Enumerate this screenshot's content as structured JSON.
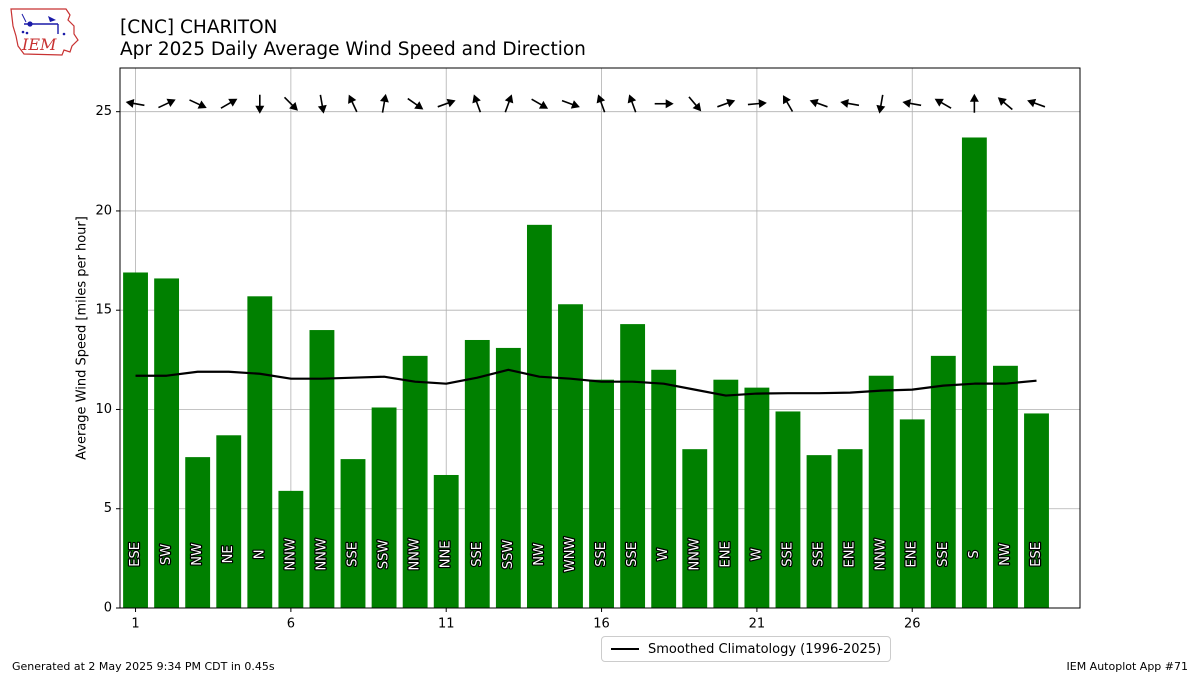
{
  "header": {
    "title_line1": "[CNC] CHARITON",
    "title_line2": "Apr 2025 Daily Average Wind Speed and Direction"
  },
  "logo": {
    "text": "IEM",
    "icon": "iem-iowa-logo"
  },
  "footer": {
    "generated": "Generated at 2 May 2025 9:34 PM CDT in 0.45s",
    "app": "IEM Autoplot App #71"
  },
  "legend": {
    "label": "Smoothed Climatology (1996-2025)"
  },
  "colors": {
    "bars": "#008000",
    "line": "#000000",
    "grid": "#b0b0b0"
  },
  "chart_data": {
    "type": "bar",
    "ylabel": "Average Wind Speed [miles per hour]",
    "xlabel": "",
    "ylim": [
      0,
      27.2
    ],
    "xlim": [
      0.5,
      31.4
    ],
    "xticks": [
      1,
      6,
      11,
      16,
      21,
      26
    ],
    "yticks": [
      0,
      5,
      10,
      15,
      20,
      25
    ],
    "grid": true,
    "legend_position": "bottom-center",
    "days": [
      1,
      2,
      3,
      4,
      5,
      6,
      7,
      8,
      9,
      10,
      11,
      12,
      13,
      14,
      15,
      16,
      17,
      18,
      19,
      20,
      21,
      22,
      23,
      24,
      25,
      26,
      27,
      28,
      29,
      30
    ],
    "speed": [
      16.9,
      16.6,
      7.6,
      8.7,
      15.7,
      5.9,
      14.0,
      7.5,
      10.1,
      12.7,
      6.7,
      13.5,
      13.1,
      19.3,
      15.3,
      11.5,
      14.3,
      12.0,
      8.0,
      11.5,
      11.1,
      9.9,
      7.7,
      8.0,
      11.7,
      9.5,
      12.7,
      23.7,
      12.2,
      9.8
    ],
    "direction": [
      "ESE",
      "SW",
      "NW",
      "NE",
      "N",
      "NNW",
      "NNW",
      "SSE",
      "SSW",
      "NNW",
      "NNE",
      "SSE",
      "SSW",
      "NW",
      "WNW",
      "SSE",
      "SSE",
      "W",
      "NNW",
      "ENE",
      "W",
      "SSE",
      "SSE",
      "ENE",
      "NNW",
      "ENE",
      "SSE",
      "S",
      "NW",
      "ESE"
    ],
    "climatology": {
      "name": "Smoothed Climatology (1996-2025)",
      "values": [
        11.7,
        11.7,
        11.9,
        11.9,
        11.8,
        11.55,
        11.55,
        11.6,
        11.65,
        11.4,
        11.3,
        11.6,
        12.0,
        11.65,
        11.55,
        11.4,
        11.4,
        11.3,
        11.0,
        10.7,
        10.8,
        10.82,
        10.82,
        10.85,
        10.95,
        11.0,
        11.2,
        11.3,
        11.3,
        11.45
      ]
    },
    "arrow_angles_deg": [
      190,
      -25,
      25,
      -30,
      90,
      45,
      80,
      -115,
      -80,
      35,
      -20,
      -110,
      -70,
      30,
      20,
      -110,
      -110,
      0,
      50,
      -20,
      -5,
      -120,
      -160,
      190,
      100,
      190,
      -150,
      -90,
      -140,
      -160
    ]
  }
}
